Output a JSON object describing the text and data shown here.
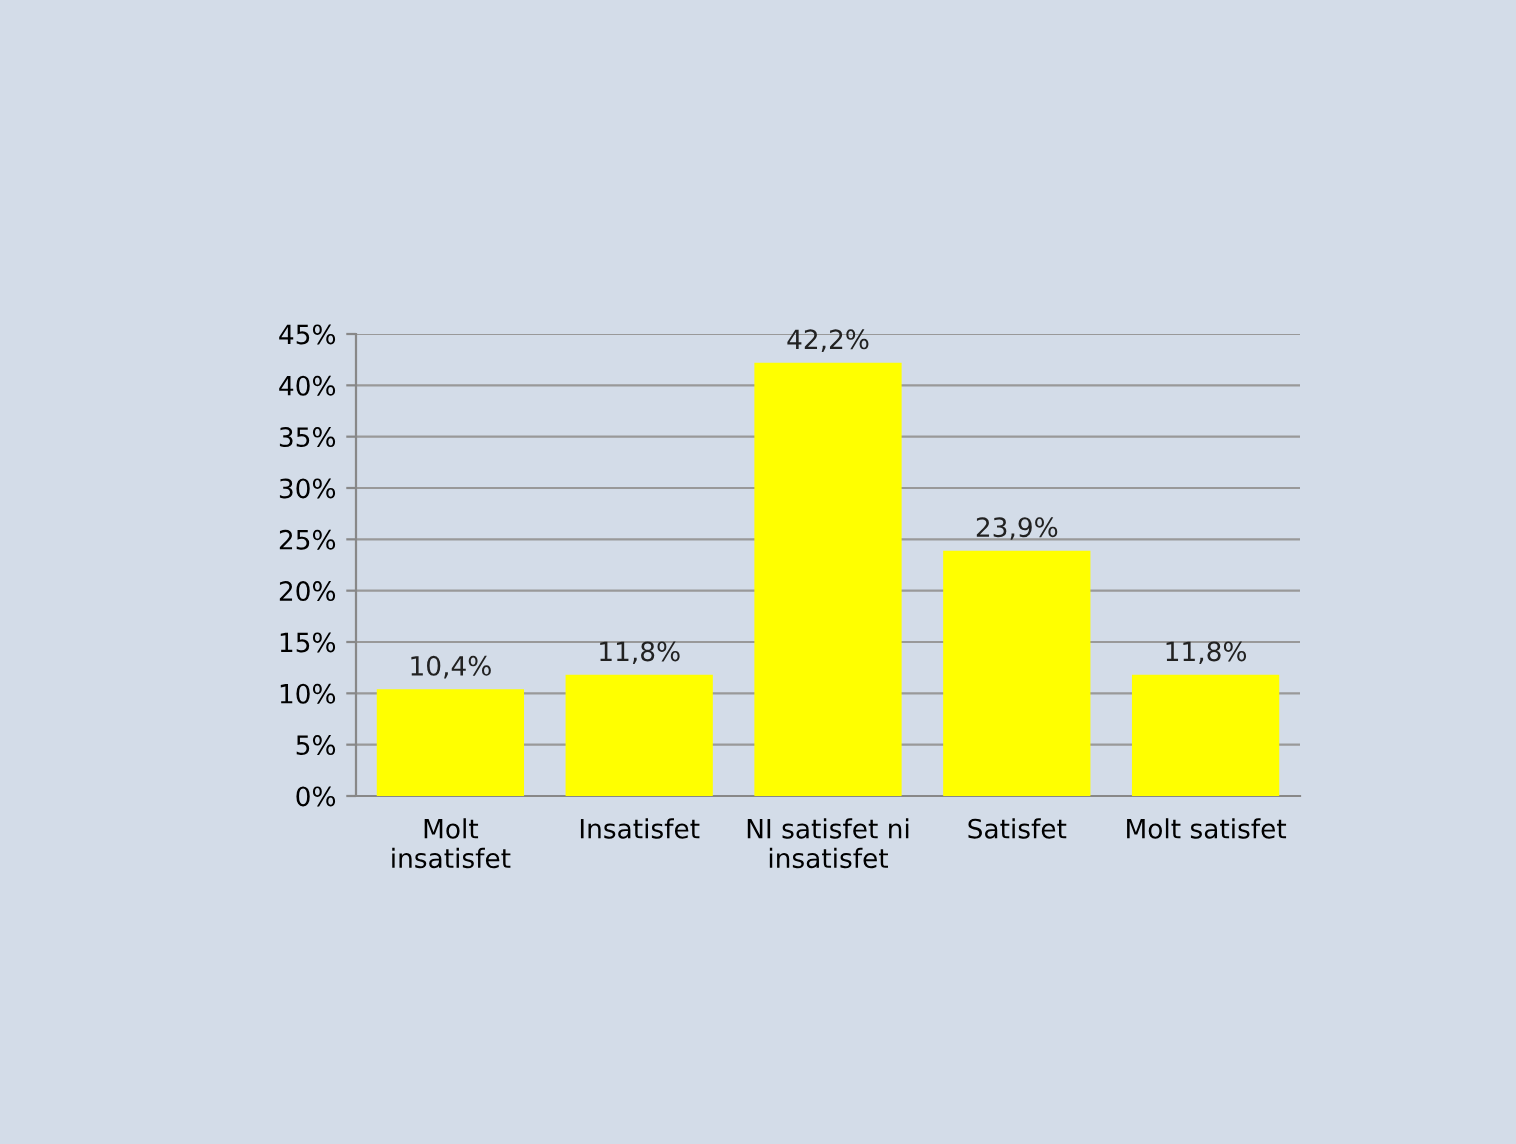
{
  "chart_data": {
    "type": "bar",
    "categories": [
      "Molt\ninsatisfet",
      "Insatisfet",
      "NI satisfet ni\ninsatisfet",
      "Satisfet",
      "Molt satisfet"
    ],
    "values": [
      10.4,
      11.8,
      42.2,
      23.9,
      11.8
    ],
    "value_labels": [
      "10,4%",
      "11,8%",
      "42,2%",
      "23,9%",
      "11,8%"
    ],
    "color": "#ffff00",
    "ylim": [
      0,
      45
    ],
    "yticks": [
      {
        "value": 0,
        "label": "0%"
      },
      {
        "value": 5,
        "label": "5%"
      },
      {
        "value": 10,
        "label": "10%"
      },
      {
        "value": 15,
        "label": "15%"
      },
      {
        "value": 20,
        "label": "20%"
      },
      {
        "value": 25,
        "label": "25%"
      },
      {
        "value": 30,
        "label": "30%"
      },
      {
        "value": 35,
        "label": "35%"
      },
      {
        "value": 40,
        "label": "40%"
      },
      {
        "value": 45,
        "label": "45%"
      }
    ],
    "grid": "y",
    "legend": false
  }
}
